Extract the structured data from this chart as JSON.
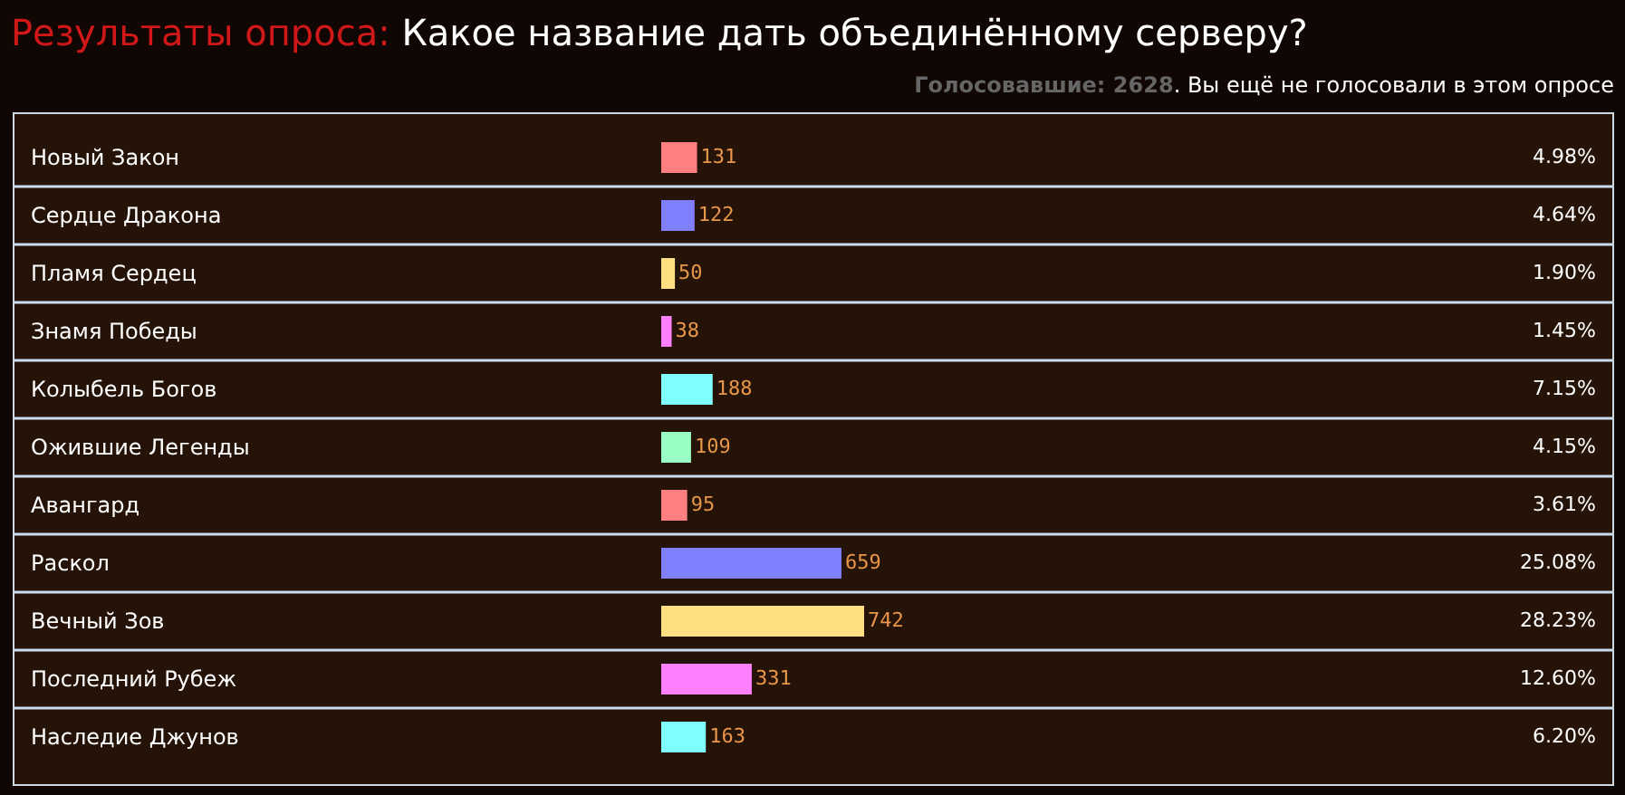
{
  "chart_data": {
    "type": "bar",
    "orientation": "horizontal",
    "title": "Результаты опроса:",
    "subtitle": "Какое название дать объединённому серверу?",
    "categories": [
      "Новый Закон",
      "Сердце Дракона",
      "Пламя Сердец",
      "Знамя Победы",
      "Колыбель Богов",
      "Ожившие Легенды",
      "Авангард",
      "Раскол",
      "Вечный Зов",
      "Последний Рубеж",
      "Наследие Джунов"
    ],
    "values": [
      131,
      122,
      50,
      38,
      188,
      109,
      95,
      659,
      742,
      331,
      163
    ],
    "colors": [
      "#ff8080",
      "#8080ff",
      "#ffe080",
      "#ff80ff",
      "#80ffff",
      "#99ffc4",
      "#ff8080",
      "#8080ff",
      "#ffe080",
      "#ff80ff",
      "#80ffff"
    ],
    "data_labels": true,
    "annotations": [
      "Голосовавшие: 2628",
      ". Вы ещё не голосовали в этом опросе",
      "4.98%",
      "4.64%",
      "1.90%",
      "1.45%",
      "7.15%",
      "4.15%",
      "3.61%",
      "25.08%",
      "28.23%",
      "12.60%",
      "6.20%"
    ]
  }
}
